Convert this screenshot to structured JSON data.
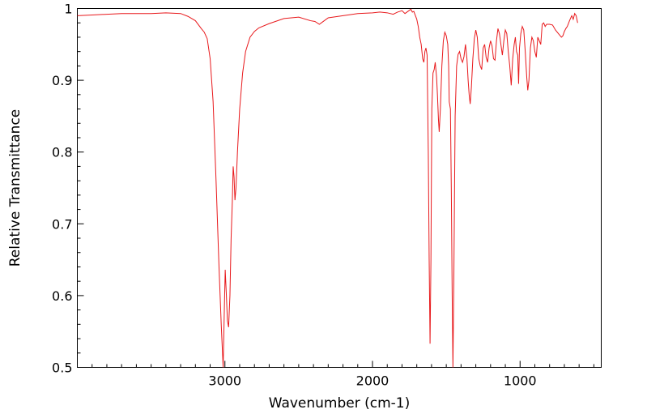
{
  "chart_data": {
    "type": "line",
    "title": "",
    "xlabel": "Wavenumber (cm-1)",
    "ylabel": "Relative Transmittance",
    "xlim": [
      4000,
      450
    ],
    "ylim": [
      0.5,
      1.0
    ],
    "x_reversed": true,
    "grid": false,
    "legend": "none",
    "x_ticks": [
      {
        "value": 3000,
        "label": "3000"
      },
      {
        "value": 2000,
        "label": "2000"
      },
      {
        "value": 1000,
        "label": "1000"
      }
    ],
    "y_ticks": [
      {
        "value": 0.5,
        "label": "0.5"
      },
      {
        "value": 0.6,
        "label": "0.6"
      },
      {
        "value": 0.7,
        "label": "0.7"
      },
      {
        "value": 0.8,
        "label": "0.8"
      },
      {
        "value": 0.9,
        "label": "0.9"
      },
      {
        "value": 1.0,
        "label": "1"
      }
    ],
    "series": [
      {
        "color": "#e8191c",
        "points": [
          [
            4000,
            0.99
          ],
          [
            3900,
            0.991
          ],
          [
            3800,
            0.992
          ],
          [
            3700,
            0.993
          ],
          [
            3600,
            0.993
          ],
          [
            3500,
            0.993
          ],
          [
            3400,
            0.994
          ],
          [
            3300,
            0.993
          ],
          [
            3250,
            0.989
          ],
          [
            3200,
            0.983
          ],
          [
            3160,
            0.972
          ],
          [
            3140,
            0.967
          ],
          [
            3120,
            0.958
          ],
          [
            3100,
            0.93
          ],
          [
            3080,
            0.87
          ],
          [
            3060,
            0.76
          ],
          [
            3040,
            0.64
          ],
          [
            3025,
            0.56
          ],
          [
            3012,
            0.5
          ],
          [
            3005,
            0.57
          ],
          [
            2998,
            0.636
          ],
          [
            2990,
            0.6
          ],
          [
            2983,
            0.565
          ],
          [
            2975,
            0.556
          ],
          [
            2966,
            0.6
          ],
          [
            2958,
            0.68
          ],
          [
            2950,
            0.73
          ],
          [
            2944,
            0.78
          ],
          [
            2938,
            0.765
          ],
          [
            2932,
            0.733
          ],
          [
            2925,
            0.75
          ],
          [
            2915,
            0.8
          ],
          [
            2900,
            0.86
          ],
          [
            2880,
            0.91
          ],
          [
            2860,
            0.94
          ],
          [
            2830,
            0.96
          ],
          [
            2800,
            0.968
          ],
          [
            2770,
            0.973
          ],
          [
            2700,
            0.979
          ],
          [
            2600,
            0.986
          ],
          [
            2500,
            0.988
          ],
          [
            2420,
            0.983
          ],
          [
            2390,
            0.982
          ],
          [
            2360,
            0.978
          ],
          [
            2340,
            0.981
          ],
          [
            2300,
            0.987
          ],
          [
            2200,
            0.99
          ],
          [
            2100,
            0.993
          ],
          [
            2000,
            0.994
          ],
          [
            1950,
            0.995
          ],
          [
            1900,
            0.994
          ],
          [
            1860,
            0.992
          ],
          [
            1830,
            0.995
          ],
          [
            1800,
            0.997
          ],
          [
            1780,
            0.993
          ],
          [
            1760,
            0.996
          ],
          [
            1740,
            0.999
          ],
          [
            1730,
            0.995
          ],
          [
            1720,
            0.996
          ],
          [
            1700,
            0.985
          ],
          [
            1690,
            0.975
          ],
          [
            1680,
            0.96
          ],
          [
            1670,
            0.95
          ],
          [
            1660,
            0.93
          ],
          [
            1652,
            0.925
          ],
          [
            1645,
            0.94
          ],
          [
            1638,
            0.945
          ],
          [
            1630,
            0.935
          ],
          [
            1622,
            0.8
          ],
          [
            1616,
            0.65
          ],
          [
            1610,
            0.533
          ],
          [
            1604,
            0.65
          ],
          [
            1598,
            0.86
          ],
          [
            1590,
            0.91
          ],
          [
            1582,
            0.915
          ],
          [
            1575,
            0.925
          ],
          [
            1566,
            0.905
          ],
          [
            1560,
            0.88
          ],
          [
            1553,
            0.845
          ],
          [
            1548,
            0.828
          ],
          [
            1540,
            0.86
          ],
          [
            1530,
            0.92
          ],
          [
            1520,
            0.955
          ],
          [
            1510,
            0.967
          ],
          [
            1500,
            0.962
          ],
          [
            1490,
            0.95
          ],
          [
            1484,
            0.92
          ],
          [
            1480,
            0.87
          ],
          [
            1472,
            0.86
          ],
          [
            1466,
            0.75
          ],
          [
            1460,
            0.6
          ],
          [
            1455,
            0.5
          ],
          [
            1449,
            0.62
          ],
          [
            1440,
            0.85
          ],
          [
            1430,
            0.92
          ],
          [
            1420,
            0.936
          ],
          [
            1410,
            0.94
          ],
          [
            1400,
            0.93
          ],
          [
            1390,
            0.925
          ],
          [
            1380,
            0.933
          ],
          [
            1370,
            0.95
          ],
          [
            1360,
            0.93
          ],
          [
            1352,
            0.9
          ],
          [
            1345,
            0.88
          ],
          [
            1338,
            0.867
          ],
          [
            1330,
            0.89
          ],
          [
            1320,
            0.93
          ],
          [
            1310,
            0.958
          ],
          [
            1300,
            0.97
          ],
          [
            1290,
            0.96
          ],
          [
            1280,
            0.93
          ],
          [
            1270,
            0.92
          ],
          [
            1260,
            0.915
          ],
          [
            1250,
            0.945
          ],
          [
            1240,
            0.95
          ],
          [
            1230,
            0.932
          ],
          [
            1220,
            0.925
          ],
          [
            1210,
            0.945
          ],
          [
            1200,
            0.955
          ],
          [
            1190,
            0.948
          ],
          [
            1180,
            0.93
          ],
          [
            1170,
            0.928
          ],
          [
            1160,
            0.955
          ],
          [
            1150,
            0.972
          ],
          [
            1140,
            0.965
          ],
          [
            1130,
            0.95
          ],
          [
            1120,
            0.935
          ],
          [
            1110,
            0.955
          ],
          [
            1100,
            0.97
          ],
          [
            1090,
            0.965
          ],
          [
            1080,
            0.94
          ],
          [
            1070,
            0.92
          ],
          [
            1060,
            0.893
          ],
          [
            1050,
            0.93
          ],
          [
            1040,
            0.95
          ],
          [
            1032,
            0.96
          ],
          [
            1024,
            0.94
          ],
          [
            1016,
            0.935
          ],
          [
            1010,
            0.895
          ],
          [
            1004,
            0.945
          ],
          [
            995,
            0.965
          ],
          [
            985,
            0.975
          ],
          [
            975,
            0.97
          ],
          [
            965,
            0.94
          ],
          [
            955,
            0.905
          ],
          [
            948,
            0.886
          ],
          [
            940,
            0.9
          ],
          [
            930,
            0.945
          ],
          [
            920,
            0.96
          ],
          [
            910,
            0.955
          ],
          [
            900,
            0.94
          ],
          [
            890,
            0.932
          ],
          [
            880,
            0.96
          ],
          [
            870,
            0.955
          ],
          [
            860,
            0.95
          ],
          [
            850,
            0.978
          ],
          [
            840,
            0.98
          ],
          [
            830,
            0.975
          ],
          [
            820,
            0.978
          ],
          [
            800,
            0.978
          ],
          [
            780,
            0.977
          ],
          [
            760,
            0.97
          ],
          [
            740,
            0.965
          ],
          [
            720,
            0.96
          ],
          [
            710,
            0.962
          ],
          [
            700,
            0.968
          ],
          [
            690,
            0.972
          ],
          [
            680,
            0.975
          ],
          [
            665,
            0.983
          ],
          [
            650,
            0.99
          ],
          [
            640,
            0.985
          ],
          [
            630,
            0.993
          ],
          [
            620,
            0.99
          ],
          [
            610,
            0.98
          ]
        ]
      }
    ]
  }
}
